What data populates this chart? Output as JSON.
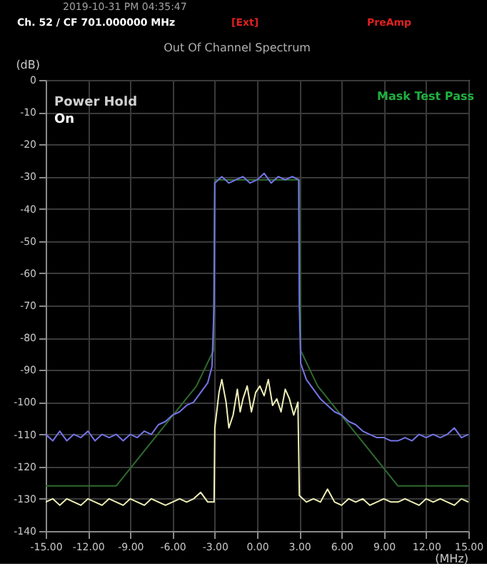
{
  "chart_data": {
    "type": "line",
    "title": "Out Of Channel Spectrum",
    "annotations": [
      "2019-10-31 PM 04:35:47",
      "Ch. 52 / CF 701.000000 MHz",
      "[Ext]",
      "PreAmp",
      "Power Hold",
      "On",
      "Mask Test Pass"
    ],
    "xlabel": "(MHz)",
    "ylabel": "(dB)",
    "xlim": [
      -15,
      15
    ],
    "ylim": [
      -140,
      0
    ],
    "xticks": [
      {
        "value": -15,
        "label": "-15.00"
      },
      {
        "value": -12,
        "label": "-12.00"
      },
      {
        "value": -9,
        "label": "-9.00"
      },
      {
        "value": -6,
        "label": "-6.00"
      },
      {
        "value": -3,
        "label": "-3.00"
      },
      {
        "value": 0,
        "label": "0.00"
      },
      {
        "value": 3,
        "label": "3.00"
      },
      {
        "value": 6,
        "label": "6.00"
      },
      {
        "value": 9,
        "label": "9.00"
      },
      {
        "value": 12,
        "label": "12.00"
      },
      {
        "value": 15,
        "label": "15.00"
      }
    ],
    "yticks": [
      0,
      -10,
      -20,
      -30,
      -40,
      -50,
      -60,
      -70,
      -80,
      -90,
      -100,
      -110,
      -120,
      -130,
      -140
    ],
    "grid": true,
    "line_style": "solid",
    "marker": "none",
    "series": [
      {
        "color": "#2e6b2e",
        "x": [
          -15,
          -10,
          -4.3,
          -3.1,
          -3,
          3,
          3.1,
          4.3,
          10,
          15
        ],
        "values": [
          -126,
          -126,
          -95,
          -84,
          -31,
          -31,
          -84,
          -95,
          -126,
          -126
        ]
      },
      {
        "color": "#7474e8",
        "x": [
          -15,
          -14.5,
          -14,
          -13.5,
          -13,
          -12.5,
          -12,
          -11.5,
          -11,
          -10.5,
          -10,
          -9.5,
          -9,
          -8.5,
          -8,
          -7.5,
          -7,
          -6.5,
          -6,
          -5.5,
          -5,
          -4.5,
          -4,
          -3.5,
          -3.2,
          -3.05,
          -3,
          -2.5,
          -2,
          -1.5,
          -1,
          -0.5,
          0,
          0.5,
          1,
          1.5,
          2,
          2.5,
          2.95,
          3,
          3.1,
          3.5,
          4,
          4.5,
          5,
          5.5,
          6,
          6.5,
          7,
          7.5,
          8,
          8.5,
          9,
          9.5,
          10,
          10.5,
          11,
          11.5,
          12,
          12.5,
          13,
          13.5,
          14,
          14.5,
          15
        ],
        "values": [
          -110,
          -112,
          -109,
          -112,
          -110,
          -111,
          -109,
          -112,
          -110,
          -111,
          -110,
          -112,
          -110,
          -111,
          -109,
          -110,
          -107,
          -106,
          -104,
          -103,
          -101,
          -100,
          -97,
          -94,
          -89,
          -70,
          -32,
          -30,
          -32,
          -31,
          -30,
          -32,
          -31,
          -29,
          -32,
          -30,
          -31,
          -30,
          -31,
          -70,
          -88,
          -93,
          -96,
          -99,
          -101,
          -103,
          -104,
          -106,
          -107,
          -109,
          -110,
          -111,
          -111,
          -112,
          -112,
          -111,
          -112,
          -110,
          -111,
          -110,
          -111,
          -110,
          -108,
          -111,
          -110
        ]
      },
      {
        "color": "#f0f0b8",
        "x": [
          -15,
          -14.5,
          -14,
          -13.5,
          -13,
          -12.5,
          -12,
          -11.5,
          -11,
          -10.5,
          -10,
          -9.5,
          -9,
          -8.5,
          -8,
          -7.5,
          -7,
          -6.5,
          -6,
          -5.5,
          -5,
          -4.5,
          -4,
          -3.5,
          -3.05,
          -3,
          -2.7,
          -2.5,
          -2.2,
          -2,
          -1.7,
          -1.4,
          -1.2,
          -1,
          -0.7,
          -0.4,
          -0.1,
          0.2,
          0.5,
          0.8,
          1.1,
          1.4,
          1.7,
          2,
          2.3,
          2.6,
          2.9,
          3,
          3.5,
          4,
          4.5,
          5,
          5.5,
          6,
          6.5,
          7,
          7.5,
          8,
          8.5,
          9,
          9.5,
          10,
          10.5,
          11,
          11.5,
          12,
          12.5,
          13,
          13.5,
          14,
          14.5,
          15
        ],
        "values": [
          -131,
          -130,
          -132,
          -130,
          -131,
          -132,
          -130,
          -131,
          -132,
          -130,
          -131,
          -132,
          -130,
          -131,
          -132,
          -130,
          -131,
          -132,
          -131,
          -130,
          -131,
          -130,
          -128,
          -131,
          -131,
          -108,
          -97,
          -93,
          -100,
          -108,
          -104,
          -96,
          -103,
          -99,
          -95,
          -103,
          -97,
          -95,
          -98,
          -93,
          -101,
          -99,
          -103,
          -96,
          -99,
          -104,
          -100,
          -129,
          -131,
          -130,
          -131,
          -127,
          -131,
          -132,
          -130,
          -131,
          -130,
          -132,
          -131,
          -130,
          -131,
          -131,
          -130,
          -131,
          -132,
          -130,
          -131,
          -130,
          -131,
          -132,
          -130,
          -131
        ]
      }
    ]
  }
}
